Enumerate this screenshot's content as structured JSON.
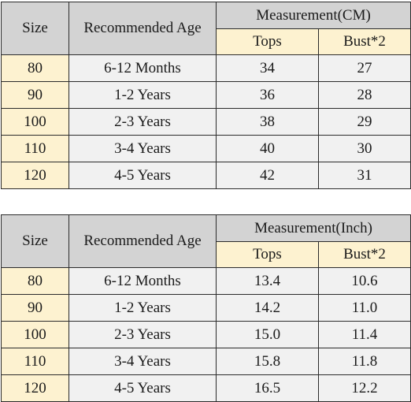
{
  "tables": [
    {
      "headers": {
        "size": "Size",
        "age": "Recommended Age",
        "measurement": "Measurement(CM)",
        "tops": "Tops",
        "bust": "Bust*2"
      },
      "rows": [
        {
          "size": "80",
          "age": "6-12 Months",
          "tops": "34",
          "bust": "27"
        },
        {
          "size": "90",
          "age": "1-2 Years",
          "tops": "36",
          "bust": "28"
        },
        {
          "size": "100",
          "age": "2-3 Years",
          "tops": "38",
          "bust": "29"
        },
        {
          "size": "110",
          "age": "3-4 Years",
          "tops": "40",
          "bust": "30"
        },
        {
          "size": "120",
          "age": "4-5 Years",
          "tops": "42",
          "bust": "31"
        }
      ]
    },
    {
      "headers": {
        "size": "Size",
        "age": "Recommended Age",
        "measurement": "Measurement(Inch)",
        "tops": "Tops",
        "bust": "Bust*2"
      },
      "rows": [
        {
          "size": "80",
          "age": "6-12 Months",
          "tops": "13.4",
          "bust": "10.6"
        },
        {
          "size": "90",
          "age": "1-2 Years",
          "tops": "14.2",
          "bust": "11.0"
        },
        {
          "size": "100",
          "age": "2-3 Years",
          "tops": "15.0",
          "bust": "11.4"
        },
        {
          "size": "110",
          "age": "3-4 Years",
          "tops": "15.8",
          "bust": "11.8"
        },
        {
          "size": "120",
          "age": "4-5 Years",
          "tops": "16.5",
          "bust": "12.2"
        }
      ]
    }
  ],
  "colors": {
    "header_gray": "#d3d3d3",
    "header_cream": "#fdf2d0",
    "size_cell": "#fdf2d0",
    "body_cell": "#f1f1f1",
    "border": "#2b2b2b"
  }
}
